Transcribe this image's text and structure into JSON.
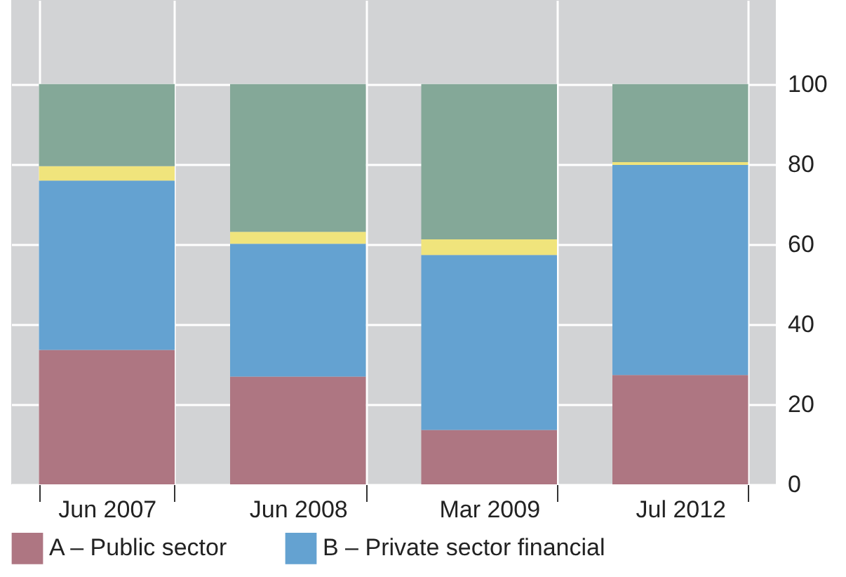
{
  "chart_data": {
    "type": "bar",
    "stacked": true,
    "categories": [
      "Jun 2007",
      "Jun 2008",
      "Mar 2009",
      "Jul 2012"
    ],
    "series": [
      {
        "name": "A – Public sector",
        "color": "#ae7682",
        "values": [
          33.6,
          26.9,
          13.6,
          27.3
        ]
      },
      {
        "name": "B – Private sector financial",
        "color": "#64a2d1",
        "values": [
          42.3,
          33.2,
          43.7,
          52.5
        ]
      },
      {
        "color": "#f0e47c",
        "values": [
          3.6,
          3.0,
          3.9,
          0.7
        ]
      },
      {
        "color": "#84a898",
        "values": [
          20.5,
          36.9,
          38.8,
          19.5
        ]
      }
    ],
    "ylim": [
      0,
      121
    ],
    "yticks": [
      0,
      20,
      40,
      60,
      80,
      100
    ],
    "grid": true,
    "legend": "bottom left"
  }
}
